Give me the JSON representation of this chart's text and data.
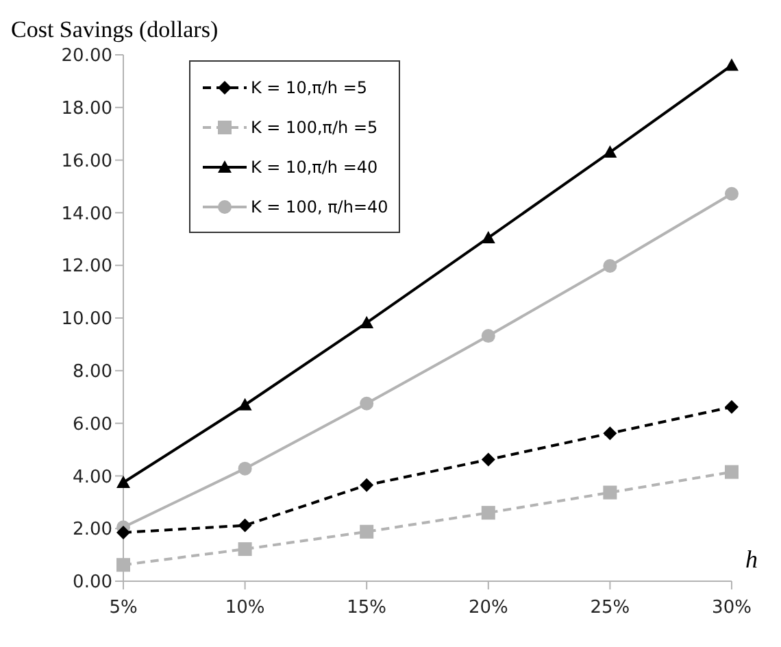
{
  "chart_data": {
    "type": "line",
    "ylabel": "Cost Savings (dollars)",
    "xlabel": "h",
    "categories": [
      "5%",
      "10%",
      "15%",
      "20%",
      "25%",
      "30%"
    ],
    "series": [
      {
        "name": "K = 10,π/h =5",
        "color": "#000000",
        "marker": "diamond",
        "line_style": "dashed",
        "values": [
          1.85,
          2.12,
          3.65,
          4.62,
          5.62,
          6.62
        ]
      },
      {
        "name": "K = 100,π/h =5",
        "color": "#b3b3b3",
        "marker": "square",
        "line_style": "dashed",
        "values": [
          0.62,
          1.22,
          1.88,
          2.6,
          3.37,
          4.15
        ]
      },
      {
        "name": "K = 10,π/h =40",
        "color": "#000000",
        "marker": "triangle",
        "line_style": "solid",
        "values": [
          3.75,
          6.7,
          9.82,
          13.05,
          16.3,
          19.6
        ]
      },
      {
        "name": "K = 100, π/h=40",
        "color": "#b3b3b3",
        "marker": "circle",
        "line_style": "solid",
        "values": [
          2.05,
          4.28,
          6.75,
          9.32,
          11.98,
          14.72
        ]
      }
    ],
    "ylim": [
      0,
      20
    ],
    "yticks": [
      {
        "value": 0,
        "label": "0.00"
      },
      {
        "value": 2,
        "label": "2.00"
      },
      {
        "value": 4,
        "label": "4.00"
      },
      {
        "value": 6,
        "label": "6.00"
      },
      {
        "value": 8,
        "label": "8.00"
      },
      {
        "value": 10,
        "label": "10.00"
      },
      {
        "value": 12,
        "label": "12.00"
      },
      {
        "value": 14,
        "label": "14.00"
      },
      {
        "value": 16,
        "label": "16.00"
      },
      {
        "value": 18,
        "label": "18.00"
      },
      {
        "value": 20,
        "label": "20.00"
      }
    ],
    "grid": false,
    "legend": "top left"
  }
}
